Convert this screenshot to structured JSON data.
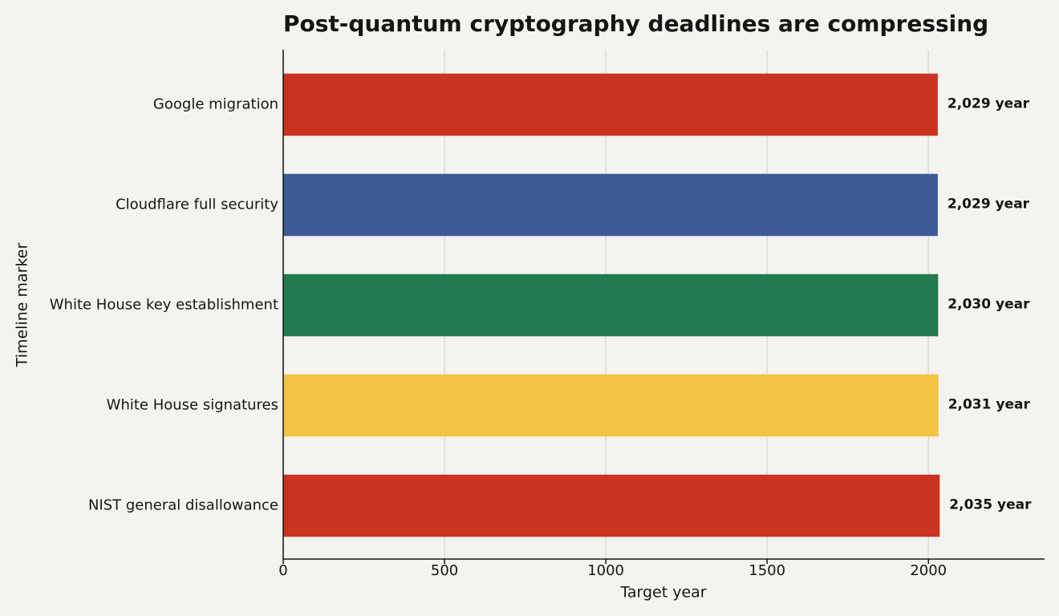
{
  "chart_data": {
    "type": "bar",
    "orientation": "horizontal",
    "title": "Post-quantum cryptography deadlines are compressing",
    "x_label": "Target year",
    "y_label": "Timeline marker",
    "categories": [
      "Google migration",
      "Cloudflare full security",
      "White House key establishment",
      "White House signatures",
      "NIST general disallowance"
    ],
    "values": [
      2029,
      2029,
      2030,
      2031,
      2035
    ],
    "value_labels": [
      "2,029 year",
      "2,029 year",
      "2,030 year",
      "2,031 year",
      "2,035 year"
    ],
    "colors": [
      "#c9331f",
      "#3c5a94",
      "#227a4e",
      "#f2c443",
      "#c9331f"
    ],
    "xlim": [
      0,
      2360
    ],
    "xticks": [
      0,
      500,
      1000,
      1500,
      2000
    ],
    "grid": true
  }
}
